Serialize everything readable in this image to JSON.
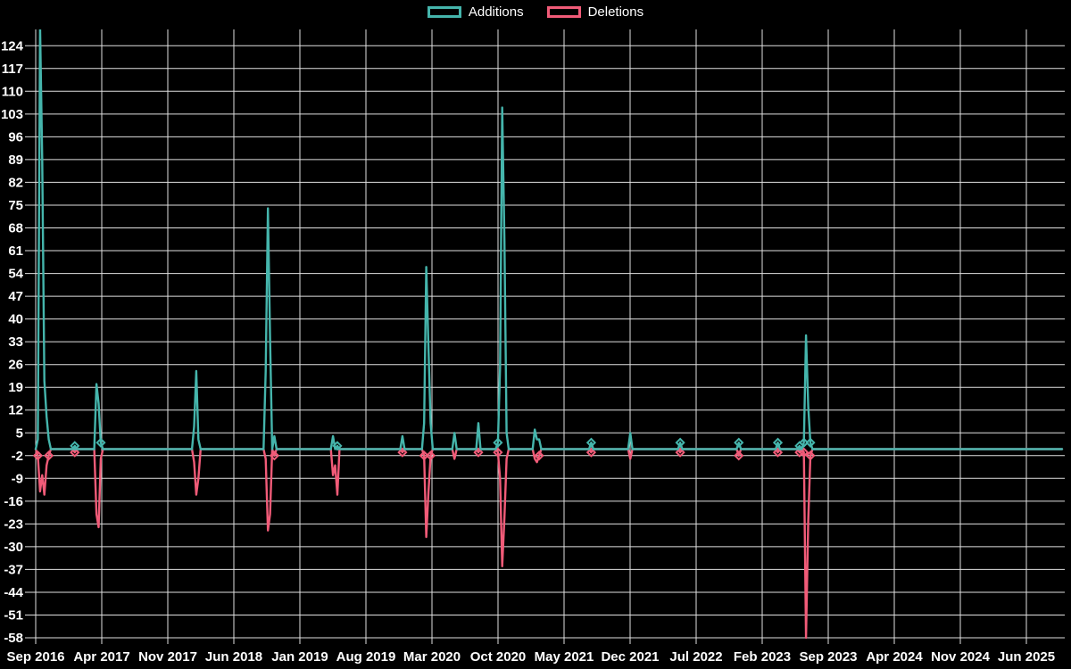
{
  "legend": {
    "items": [
      {
        "label": "Additions",
        "color": "#45b5ac"
      },
      {
        "label": "Deletions",
        "color": "#f15b78"
      }
    ]
  },
  "colors": {
    "background": "#000000",
    "grid": "#e0e0e0",
    "text": "#ffffff",
    "additions": "#45b5ac",
    "deletions": "#f15b78"
  },
  "chart_data": {
    "type": "line",
    "title": "",
    "xlabel": "",
    "ylabel": "",
    "legend_position": "top-center",
    "grid": true,
    "x_axis": {
      "tick_labels": [
        "Sep 2016",
        "Apr 2017",
        "Nov 2017",
        "Jun 2018",
        "Jan 2019",
        "Aug 2019",
        "Mar 2020",
        "Oct 2020",
        "May 2021",
        "Dec 2021",
        "Jul 2022",
        "Feb 2023",
        "Sep 2023",
        "Apr 2024",
        "Nov 2024",
        "Jun 2025"
      ],
      "tick_interval_months": 7,
      "unit": "weeks since Sep 2016"
    },
    "y_axis": {
      "min": -58,
      "max": 124,
      "tick_step": 7,
      "plot_top_value": 129
    },
    "weeks_total": 474,
    "series": [
      {
        "name": "Additions",
        "color": "#45b5ac",
        "default_value": 0,
        "events": [
          [
            1,
            3
          ],
          [
            2,
            130
          ],
          [
            3,
            89
          ],
          [
            4,
            21
          ],
          [
            5,
            10
          ],
          [
            6,
            3
          ],
          [
            18,
            1
          ],
          [
            28,
            20
          ],
          [
            29,
            14
          ],
          [
            30,
            2
          ],
          [
            73,
            7
          ],
          [
            74,
            24
          ],
          [
            75,
            3
          ],
          [
            106,
            24
          ],
          [
            107,
            74
          ],
          [
            108,
            34
          ],
          [
            110,
            4
          ],
          [
            137,
            4
          ],
          [
            139,
            1
          ],
          [
            169,
            4
          ],
          [
            179,
            8
          ],
          [
            180,
            56
          ],
          [
            181,
            31
          ],
          [
            182,
            8
          ],
          [
            193,
            5
          ],
          [
            204,
            8
          ],
          [
            213,
            2
          ],
          [
            214,
            25
          ],
          [
            215,
            105
          ],
          [
            216,
            64
          ],
          [
            217,
            5
          ],
          [
            230,
            6
          ],
          [
            231,
            3
          ],
          [
            232,
            3
          ],
          [
            256,
            2
          ],
          [
            274,
            5
          ],
          [
            297,
            2
          ],
          [
            324,
            2
          ],
          [
            342,
            2
          ],
          [
            352,
            1
          ],
          [
            354,
            2
          ],
          [
            355,
            35
          ],
          [
            356,
            13
          ],
          [
            357,
            2
          ]
        ]
      },
      {
        "name": "Deletions",
        "color": "#f15b78",
        "default_value": 0,
        "events": [
          [
            1,
            -2
          ],
          [
            2,
            -13
          ],
          [
            3,
            -8
          ],
          [
            4,
            -14
          ],
          [
            5,
            -5
          ],
          [
            6,
            -2
          ],
          [
            18,
            -1
          ],
          [
            28,
            -20
          ],
          [
            29,
            -24
          ],
          [
            30,
            -3
          ],
          [
            73,
            -4
          ],
          [
            74,
            -14
          ],
          [
            75,
            -9
          ],
          [
            106,
            -3
          ],
          [
            107,
            -25
          ],
          [
            108,
            -20
          ],
          [
            110,
            -2
          ],
          [
            137,
            -8
          ],
          [
            138,
            -5
          ],
          [
            139,
            -14
          ],
          [
            169,
            -1
          ],
          [
            179,
            -2
          ],
          [
            180,
            -27
          ],
          [
            181,
            -13
          ],
          [
            182,
            -2
          ],
          [
            193,
            -3
          ],
          [
            204,
            -1
          ],
          [
            213,
            -1
          ],
          [
            214,
            -9
          ],
          [
            215,
            -36
          ],
          [
            216,
            -21
          ],
          [
            217,
            -3
          ],
          [
            230,
            -3
          ],
          [
            231,
            -4
          ],
          [
            232,
            -2
          ],
          [
            256,
            -1
          ],
          [
            274,
            -3
          ],
          [
            297,
            -1
          ],
          [
            324,
            -2
          ],
          [
            342,
            -1
          ],
          [
            352,
            -1
          ],
          [
            354,
            -1
          ],
          [
            355,
            -58
          ],
          [
            356,
            -22
          ],
          [
            357,
            -2
          ]
        ]
      }
    ]
  }
}
